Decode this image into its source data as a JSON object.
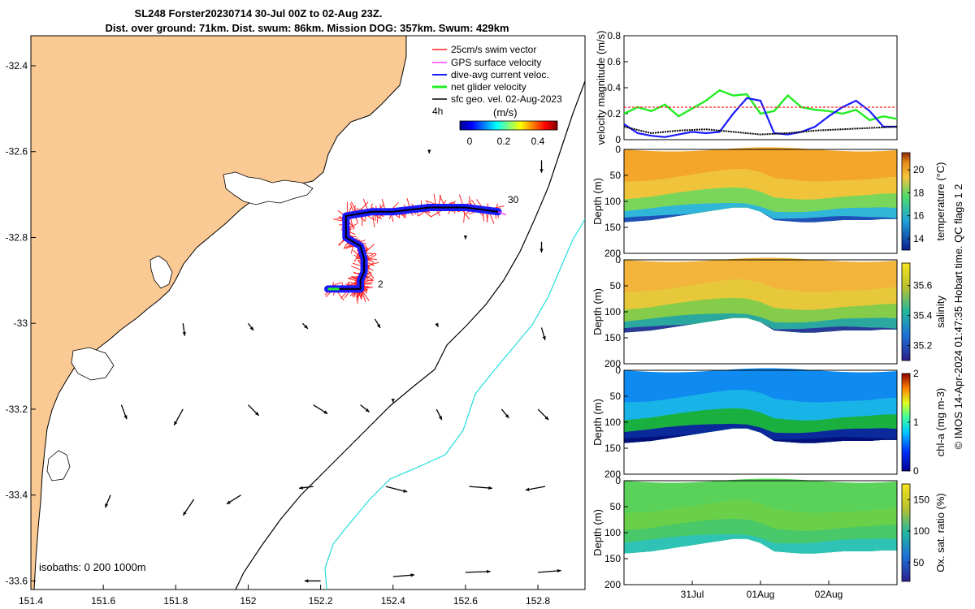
{
  "title": {
    "line1": "SL248 Forster20230714 30-Jul 00Z to 02-Aug 23Z.",
    "line2": "Dist. over ground: 71km. Dist. swum: 86km. Mission DOG: 357km. Swum: 429km"
  },
  "side_note": "© IMOS 14-Apr-2024 01:47:35 Hobart time. QC flags 1  2",
  "colors": {
    "land": "#fbc993",
    "swim_vector": "#ff2020",
    "gps_velocity": "#ff40ff",
    "dive_avg": "#1a1aff",
    "net_glider": "#22ee22",
    "geo_arrow": "#000000",
    "isobath_200": "#000000",
    "isobath_1000": "#22dddd"
  },
  "chart_data": [
    {
      "type": "map",
      "x_ticks": [
        "151.4",
        "151.6",
        "151.8",
        "152",
        "152.2",
        "152.4",
        "152.6",
        "152.8"
      ],
      "y_ticks": [
        "-32.4",
        "-32.6",
        "-32.8",
        "-33",
        "-33.2",
        "-33.4",
        "-33.6"
      ],
      "xlim": [
        151.4,
        152.93
      ],
      "ylim": [
        -33.62,
        -32.33
      ],
      "legend": {
        "placement": "top-right",
        "items": [
          "25cm/s swim vector",
          "GPS surface velocity",
          "dive-avg current veloc.",
          "net glider velocity",
          "sfc geo. vel. 02-Aug-2023"
        ],
        "extra": "4h"
      },
      "colorbar": {
        "label": "(m/s)",
        "ticks": [
          "0",
          "0.2",
          "0.4"
        ],
        "range": [
          -0.05,
          0.5
        ]
      },
      "track_labels": [
        "30",
        "2"
      ],
      "isobath_note": "isobaths: 0   200  1000m",
      "track": {
        "lon": [
          152.69,
          152.6,
          152.5,
          152.4,
          152.34,
          152.27,
          152.27,
          152.31,
          152.32,
          152.32,
          152.31,
          152.31,
          152.31,
          152.3,
          152.22
        ],
        "lat": [
          -32.74,
          -32.73,
          -32.73,
          -32.74,
          -32.74,
          -32.75,
          -32.8,
          -32.82,
          -32.85,
          -32.88,
          -32.9,
          -32.91,
          -32.92,
          -32.92,
          -32.92
        ]
      },
      "geo_arrows": [
        {
          "lon": 152.5,
          "lat": -32.6,
          "u": 0,
          "v": -0.1
        },
        {
          "lon": 152.81,
          "lat": -32.62,
          "u": 0,
          "v": -0.7
        },
        {
          "lon": 152.6,
          "lat": -32.8,
          "u": 0,
          "v": -0.1
        },
        {
          "lon": 152.81,
          "lat": -32.81,
          "u": 0,
          "v": -0.6
        },
        {
          "lon": 151.82,
          "lat": -33.0,
          "u": 0.1,
          "v": -0.7
        },
        {
          "lon": 152.0,
          "lat": -33.0,
          "u": 0.3,
          "v": -0.4
        },
        {
          "lon": 152.15,
          "lat": -33.0,
          "u": 0.3,
          "v": -0.3
        },
        {
          "lon": 152.35,
          "lat": -32.99,
          "u": 0.3,
          "v": -0.5
        },
        {
          "lon": 152.52,
          "lat": -33.0,
          "u": 0.1,
          "v": -0.2
        },
        {
          "lon": 152.81,
          "lat": -33.01,
          "u": 0.2,
          "v": -0.7
        },
        {
          "lon": 151.65,
          "lat": -33.19,
          "u": 0.3,
          "v": -0.8
        },
        {
          "lon": 151.82,
          "lat": -33.2,
          "u": -0.5,
          "v": -0.9
        },
        {
          "lon": 152.0,
          "lat": -33.19,
          "u": 0.6,
          "v": -0.6
        },
        {
          "lon": 152.18,
          "lat": -33.19,
          "u": 0.8,
          "v": -0.5
        },
        {
          "lon": 152.31,
          "lat": -33.19,
          "u": 0.5,
          "v": -0.4
        },
        {
          "lon": 152.4,
          "lat": -33.18,
          "u": 0.0,
          "v": -0.1
        },
        {
          "lon": 152.52,
          "lat": -33.2,
          "u": 0.3,
          "v": -0.6
        },
        {
          "lon": 152.7,
          "lat": -33.2,
          "u": 0.4,
          "v": -0.5
        },
        {
          "lon": 152.8,
          "lat": -33.2,
          "u": 0.6,
          "v": -0.6
        },
        {
          "lon": 151.62,
          "lat": -33.4,
          "u": -0.3,
          "v": -0.7
        },
        {
          "lon": 151.85,
          "lat": -33.41,
          "u": -0.6,
          "v": -0.9
        },
        {
          "lon": 151.98,
          "lat": -33.4,
          "u": -0.8,
          "v": -0.5
        },
        {
          "lon": 152.18,
          "lat": -33.38,
          "u": -0.8,
          "v": -0.1
        },
        {
          "lon": 152.38,
          "lat": -33.38,
          "u": 1.2,
          "v": -0.3
        },
        {
          "lon": 152.61,
          "lat": -33.38,
          "u": 1.3,
          "v": -0.1
        },
        {
          "lon": 152.82,
          "lat": -33.38,
          "u": -1.1,
          "v": -0.2
        },
        {
          "lon": 152.2,
          "lat": -33.6,
          "u": -0.9,
          "v": 0.0
        },
        {
          "lon": 152.4,
          "lat": -33.59,
          "u": 1.2,
          "v": 0.1
        },
        {
          "lon": 152.6,
          "lat": -33.58,
          "u": 1.4,
          "v": 0.05
        },
        {
          "lon": 152.8,
          "lat": -33.58,
          "u": 1.3,
          "v": 0.1
        }
      ]
    },
    {
      "type": "line",
      "ylabel": "velocity magnitude (m/s)",
      "y_ticks": [
        "0",
        "0.2",
        "0.4",
        "0.6",
        "0.8"
      ],
      "ylim": [
        0,
        0.8
      ],
      "xlim": [
        0,
        1
      ],
      "series": [
        {
          "x": [
            0,
            0.05,
            0.1,
            0.15,
            0.2,
            0.25,
            0.3,
            0.35,
            0.4,
            0.45,
            0.5,
            0.55,
            0.6,
            0.65,
            0.7,
            0.75,
            0.8,
            0.85,
            0.9,
            0.95,
            1.0
          ],
          "values": [
            0.2,
            0.25,
            0.22,
            0.27,
            0.18,
            0.24,
            0.3,
            0.38,
            0.34,
            0.35,
            0.2,
            0.22,
            0.34,
            0.25,
            0.23,
            0.22,
            0.2,
            0.23,
            0.15,
            0.18,
            0.16
          ]
        },
        {
          "x": [
            0,
            0.05,
            0.1,
            0.15,
            0.2,
            0.25,
            0.3,
            0.35,
            0.4,
            0.45,
            0.5,
            0.55,
            0.6,
            0.65,
            0.7,
            0.75,
            0.8,
            0.85,
            0.9,
            0.95,
            1.0
          ],
          "values": [
            0.12,
            0.05,
            0.03,
            0.02,
            0.04,
            0.06,
            0.05,
            0.06,
            0.2,
            0.32,
            0.3,
            0.05,
            0.04,
            0.06,
            0.1,
            0.18,
            0.25,
            0.3,
            0.22,
            0.1,
            0.1
          ]
        },
        {
          "x": [
            0,
            0.1,
            0.2,
            0.3,
            0.4,
            0.5,
            0.6,
            0.7,
            0.8,
            0.9,
            1.0
          ],
          "values": [
            0.1,
            0.05,
            0.07,
            0.08,
            0.06,
            0.04,
            0.05,
            0.07,
            0.08,
            0.09,
            0.1
          ]
        },
        {
          "x": [
            0,
            1
          ],
          "values": [
            0.25,
            0.25
          ]
        }
      ]
    },
    {
      "type": "heatmap",
      "variable": "temperature",
      "ylabel": "Depth (m)",
      "colorbar_label": "temperature (°C)",
      "y_ticks": [
        "0",
        "50",
        "100",
        "150",
        "200"
      ],
      "ylim": [
        0,
        200
      ],
      "colorbar_ticks": [
        "14",
        "16",
        "18",
        "20"
      ],
      "crange": [
        13,
        21.5
      ]
    },
    {
      "type": "heatmap",
      "variable": "salinity",
      "ylabel": "Depth (m)",
      "colorbar_label": "salinity",
      "y_ticks": [
        "0",
        "50",
        "100",
        "150",
        "200"
      ],
      "ylim": [
        0,
        200
      ],
      "colorbar_ticks": [
        "35.2",
        "35.4",
        "35.6"
      ],
      "crange": [
        35.1,
        35.75
      ]
    },
    {
      "type": "heatmap",
      "variable": "chl-a",
      "ylabel": "Depth (m)",
      "colorbar_label": "chl-a (mg m-3)",
      "y_ticks": [
        "0",
        "50",
        "100",
        "150",
        "200"
      ],
      "ylim": [
        0,
        200
      ],
      "colorbar_ticks": [
        "0",
        "1",
        "2"
      ],
      "crange": [
        0,
        2
      ]
    },
    {
      "type": "heatmap",
      "variable": "oxygen",
      "ylabel": "Depth (m)",
      "colorbar_label": "Ox. sat. ratio (%)",
      "y_ticks": [
        "0",
        "50",
        "100",
        "150",
        "200"
      ],
      "ylim": [
        0,
        200
      ],
      "colorbar_ticks": [
        "50",
        "100",
        "150"
      ],
      "crange": [
        20,
        175
      ],
      "x_ticks": [
        "31Jul",
        "01Aug",
        "02Aug"
      ],
      "x_tick_pos": [
        0.25,
        0.5,
        0.75
      ]
    }
  ]
}
